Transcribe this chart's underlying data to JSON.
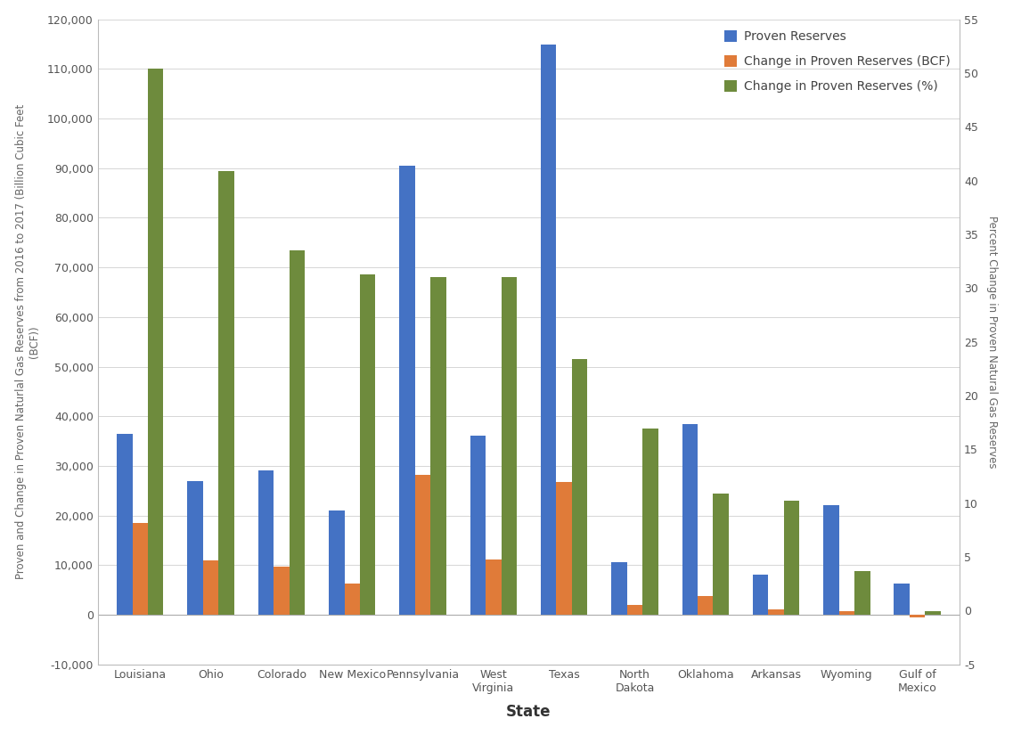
{
  "states": [
    "Louisiana",
    "Ohio",
    "Colorado",
    "New Mexico",
    "Pennsylvania",
    "West\nVirginia",
    "Texas",
    "North\nDakota",
    "Oklahoma",
    "Arkansas",
    "Wyoming",
    "Gulf of\nMexico"
  ],
  "proven_reserves": [
    36500,
    27000,
    29000,
    21000,
    90500,
    36000,
    115000,
    10500,
    38500,
    8000,
    22000,
    6200
  ],
  "change_bcf": [
    18500,
    11000,
    9700,
    6200,
    28200,
    11200,
    26800,
    1900,
    3800,
    1100,
    800,
    -600
  ],
  "change_pct_scaled": [
    110000,
    89500,
    73500,
    68500,
    68000,
    68000,
    51500,
    37500,
    24500,
    23000,
    8800,
    800
  ],
  "left_ylim": [
    -10000,
    120000
  ],
  "right_ylim": [
    -5,
    55
  ],
  "left_yticks": [
    -10000,
    0,
    10000,
    20000,
    30000,
    40000,
    50000,
    60000,
    70000,
    80000,
    90000,
    100000,
    110000,
    120000
  ],
  "right_yticks": [
    -5,
    0,
    5,
    10,
    15,
    20,
    25,
    30,
    35,
    40,
    45,
    50,
    55
  ],
  "color_blue": "#4472C4",
  "color_orange": "#E07B39",
  "color_green": "#6E8B3D",
  "bar_width": 0.22,
  "xlabel": "State",
  "ylabel_left": "Proven and Change in Proven Naturlal Gas Reserves from 2016 to 2017 (Billion Cubic Feet\n(BCF))",
  "ylabel_right": "Percent Change in Proven Natural Gas Reserves",
  "legend_labels": [
    "Proven Reserves",
    "Change in Proven Reserves (BCF)",
    "Change in Proven Reserves (%)"
  ],
  "background_color": "#ffffff",
  "grid_color": "#d0d0d0"
}
